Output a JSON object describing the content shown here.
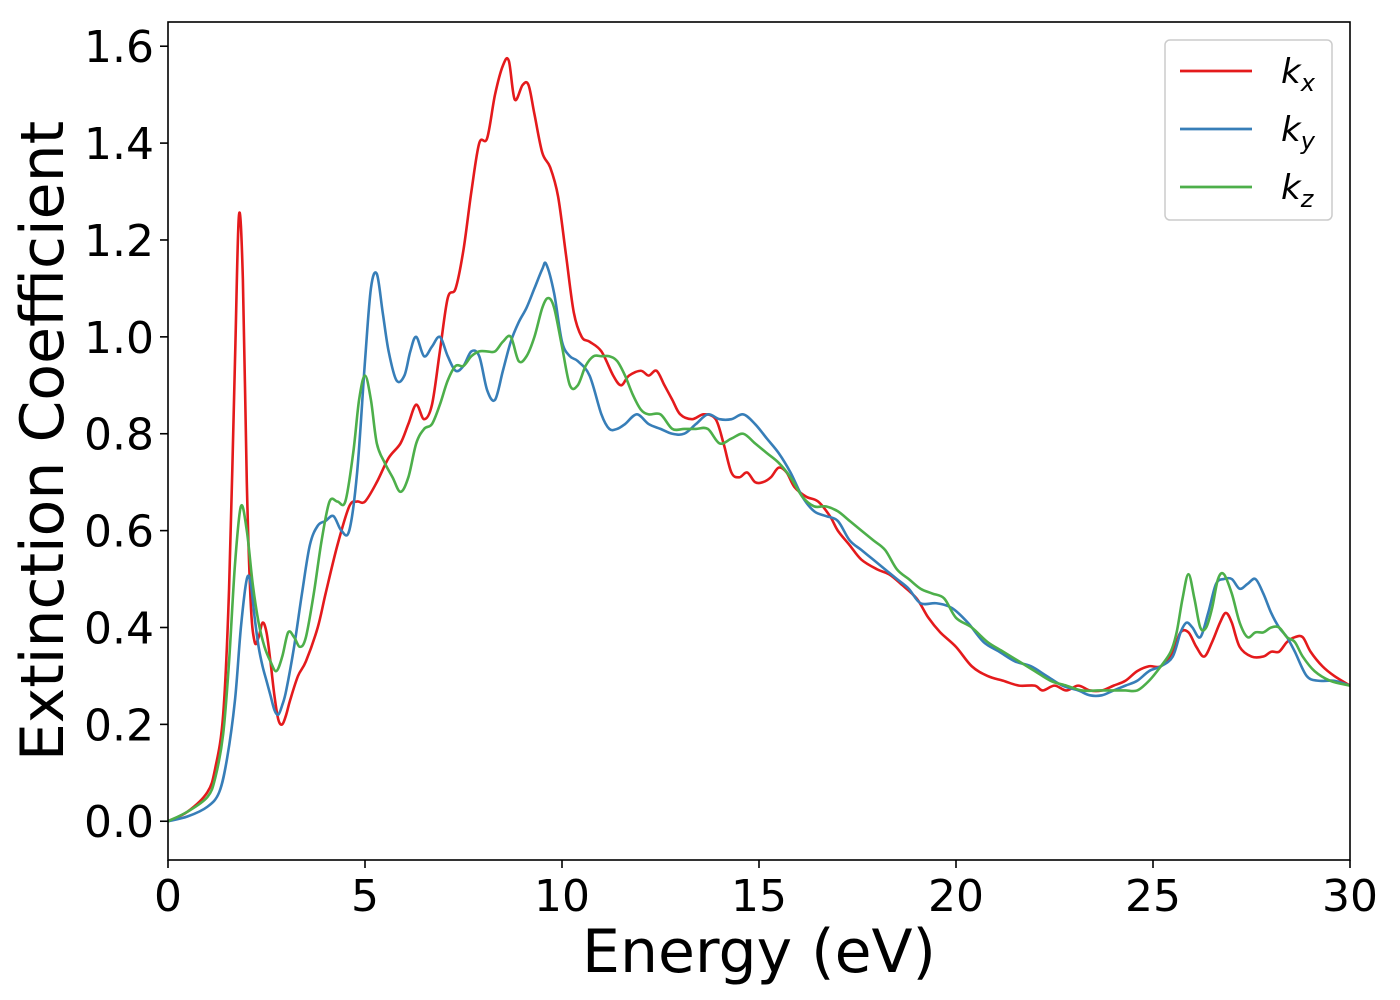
{
  "chart_data": {
    "type": "line",
    "title": "",
    "xlabel": "Energy (eV)",
    "ylabel": "Extinction Coefficient",
    "xlim": [
      0,
      30
    ],
    "ylim": [
      -0.08,
      1.65
    ],
    "xticks": [
      0,
      5,
      10,
      15,
      20,
      25,
      30
    ],
    "xtick_labels": [
      "0",
      "5",
      "10",
      "15",
      "20",
      "25",
      "30"
    ],
    "yticks": [
      0.0,
      0.2,
      0.4,
      0.6,
      0.8,
      1.0,
      1.2,
      1.4,
      1.6
    ],
    "ytick_labels": [
      "0.0",
      "0.2",
      "0.4",
      "0.6",
      "0.8",
      "1.0",
      "1.2",
      "1.4",
      "1.6"
    ],
    "grid": false,
    "legend_position": "top-right",
    "series": [
      {
        "name": "k_x",
        "legend_base": "k",
        "legend_sub": "x",
        "color": "#e41a1c",
        "x": [
          0,
          0.5,
          1.0,
          1.2,
          1.4,
          1.55,
          1.7,
          1.8,
          1.9,
          2.0,
          2.1,
          2.2,
          2.3,
          2.4,
          2.5,
          2.6,
          2.7,
          2.8,
          2.9,
          3.0,
          3.1,
          3.3,
          3.5,
          3.8,
          4.0,
          4.3,
          4.6,
          4.8,
          5.0,
          5.3,
          5.6,
          5.9,
          6.1,
          6.3,
          6.5,
          6.7,
          6.9,
          7.1,
          7.3,
          7.5,
          7.7,
          7.9,
          8.1,
          8.3,
          8.5,
          8.65,
          8.8,
          9.0,
          9.15,
          9.3,
          9.5,
          9.7,
          9.9,
          10.1,
          10.3,
          10.5,
          10.7,
          11.0,
          11.3,
          11.5,
          11.7,
          12.0,
          12.2,
          12.4,
          12.6,
          12.8,
          13.0,
          13.3,
          13.6,
          13.9,
          14.1,
          14.3,
          14.5,
          14.7,
          14.9,
          15.1,
          15.3,
          15.5,
          15.7,
          15.9,
          16.2,
          16.5,
          16.8,
          17.0,
          17.3,
          17.6,
          18.0,
          18.3,
          18.6,
          19.0,
          19.3,
          19.6,
          20.0,
          20.4,
          20.8,
          21.2,
          21.6,
          22.0,
          22.2,
          22.5,
          22.8,
          23.1,
          23.4,
          23.7,
          24.0,
          24.3,
          24.6,
          24.9,
          25.2,
          25.5,
          25.7,
          25.9,
          26.1,
          26.3,
          26.5,
          26.7,
          26.85,
          27.0,
          27.2,
          27.5,
          27.8,
          28.0,
          28.2,
          28.4,
          28.6,
          28.8,
          29.0,
          29.3,
          29.6,
          30.0
        ],
        "y": [
          0.0,
          0.02,
          0.06,
          0.11,
          0.22,
          0.48,
          0.95,
          1.25,
          1.12,
          0.7,
          0.45,
          0.37,
          0.38,
          0.41,
          0.39,
          0.33,
          0.26,
          0.21,
          0.2,
          0.22,
          0.25,
          0.3,
          0.33,
          0.4,
          0.47,
          0.57,
          0.65,
          0.66,
          0.66,
          0.7,
          0.75,
          0.78,
          0.82,
          0.86,
          0.83,
          0.86,
          0.97,
          1.08,
          1.1,
          1.18,
          1.3,
          1.4,
          1.41,
          1.5,
          1.56,
          1.57,
          1.49,
          1.52,
          1.52,
          1.46,
          1.38,
          1.35,
          1.29,
          1.17,
          1.05,
          1.0,
          0.99,
          0.97,
          0.92,
          0.9,
          0.92,
          0.93,
          0.92,
          0.93,
          0.9,
          0.87,
          0.84,
          0.83,
          0.84,
          0.83,
          0.78,
          0.72,
          0.71,
          0.72,
          0.7,
          0.7,
          0.71,
          0.73,
          0.72,
          0.69,
          0.67,
          0.66,
          0.63,
          0.6,
          0.57,
          0.54,
          0.52,
          0.51,
          0.49,
          0.46,
          0.42,
          0.39,
          0.36,
          0.32,
          0.3,
          0.29,
          0.28,
          0.28,
          0.27,
          0.28,
          0.27,
          0.28,
          0.27,
          0.27,
          0.28,
          0.29,
          0.31,
          0.32,
          0.32,
          0.35,
          0.39,
          0.39,
          0.36,
          0.34,
          0.37,
          0.41,
          0.43,
          0.41,
          0.36,
          0.34,
          0.34,
          0.35,
          0.35,
          0.37,
          0.38,
          0.38,
          0.35,
          0.32,
          0.3,
          0.28
        ]
      },
      {
        "name": "k_y",
        "legend_base": "k",
        "legend_sub": "y",
        "color": "#377eb8",
        "x": [
          0,
          0.5,
          1.0,
          1.3,
          1.5,
          1.7,
          1.85,
          2.0,
          2.1,
          2.2,
          2.3,
          2.4,
          2.5,
          2.6,
          2.7,
          2.8,
          2.9,
          3.0,
          3.2,
          3.4,
          3.6,
          3.8,
          4.0,
          4.2,
          4.4,
          4.6,
          4.8,
          5.0,
          5.15,
          5.3,
          5.45,
          5.6,
          5.8,
          6.0,
          6.15,
          6.3,
          6.5,
          6.7,
          6.9,
          7.1,
          7.3,
          7.5,
          7.7,
          7.9,
          8.1,
          8.3,
          8.5,
          8.7,
          8.9,
          9.1,
          9.3,
          9.5,
          9.6,
          9.8,
          10.0,
          10.2,
          10.4,
          10.7,
          11.0,
          11.2,
          11.4,
          11.6,
          11.9,
          12.2,
          12.5,
          12.8,
          13.1,
          13.4,
          13.7,
          14.0,
          14.3,
          14.6,
          14.9,
          15.2,
          15.5,
          15.8,
          16.1,
          16.4,
          16.7,
          17.0,
          17.3,
          17.6,
          17.9,
          18.2,
          18.5,
          18.8,
          19.1,
          19.5,
          19.9,
          20.3,
          20.7,
          21.1,
          21.5,
          21.9,
          22.3,
          22.7,
          23.1,
          23.4,
          23.7,
          24.0,
          24.3,
          24.6,
          24.9,
          25.2,
          25.5,
          25.7,
          25.85,
          26.0,
          26.2,
          26.4,
          26.6,
          26.8,
          27.0,
          27.2,
          27.4,
          27.6,
          27.8,
          28.0,
          28.2,
          28.4,
          28.6,
          28.9,
          29.2,
          29.6,
          30.0
        ],
        "y": [
          0.0,
          0.01,
          0.03,
          0.06,
          0.13,
          0.25,
          0.4,
          0.5,
          0.49,
          0.42,
          0.36,
          0.32,
          0.29,
          0.26,
          0.23,
          0.22,
          0.24,
          0.27,
          0.36,
          0.47,
          0.57,
          0.61,
          0.62,
          0.63,
          0.6,
          0.6,
          0.72,
          0.95,
          1.1,
          1.13,
          1.05,
          0.97,
          0.91,
          0.92,
          0.97,
          1.0,
          0.96,
          0.98,
          1.0,
          0.96,
          0.93,
          0.94,
          0.97,
          0.96,
          0.89,
          0.87,
          0.93,
          0.99,
          1.03,
          1.06,
          1.1,
          1.14,
          1.15,
          1.09,
          0.99,
          0.96,
          0.95,
          0.92,
          0.84,
          0.81,
          0.81,
          0.82,
          0.84,
          0.82,
          0.81,
          0.8,
          0.8,
          0.82,
          0.84,
          0.83,
          0.83,
          0.84,
          0.82,
          0.79,
          0.76,
          0.72,
          0.67,
          0.64,
          0.63,
          0.62,
          0.58,
          0.56,
          0.54,
          0.52,
          0.5,
          0.48,
          0.45,
          0.45,
          0.44,
          0.41,
          0.37,
          0.35,
          0.33,
          0.32,
          0.3,
          0.28,
          0.27,
          0.26,
          0.26,
          0.27,
          0.28,
          0.29,
          0.31,
          0.32,
          0.34,
          0.39,
          0.41,
          0.4,
          0.38,
          0.43,
          0.49,
          0.5,
          0.5,
          0.48,
          0.49,
          0.5,
          0.47,
          0.43,
          0.4,
          0.38,
          0.35,
          0.3,
          0.29,
          0.29,
          0.28
        ]
      },
      {
        "name": "k_z",
        "legend_base": "k",
        "legend_sub": "z",
        "color": "#4daf4a",
        "x": [
          0,
          0.5,
          1.0,
          1.2,
          1.4,
          1.55,
          1.7,
          1.85,
          2.0,
          2.15,
          2.3,
          2.45,
          2.6,
          2.75,
          2.9,
          3.05,
          3.2,
          3.35,
          3.5,
          3.7,
          3.9,
          4.1,
          4.3,
          4.5,
          4.7,
          4.85,
          5.0,
          5.15,
          5.3,
          5.5,
          5.7,
          5.9,
          6.1,
          6.3,
          6.5,
          6.7,
          6.9,
          7.1,
          7.3,
          7.5,
          7.7,
          7.9,
          8.1,
          8.3,
          8.5,
          8.7,
          8.9,
          9.1,
          9.3,
          9.5,
          9.65,
          9.8,
          10.0,
          10.2,
          10.4,
          10.6,
          10.8,
          11.0,
          11.2,
          11.4,
          11.6,
          11.8,
          12.0,
          12.2,
          12.5,
          12.8,
          13.1,
          13.4,
          13.7,
          14.0,
          14.3,
          14.6,
          14.9,
          15.2,
          15.5,
          15.8,
          16.1,
          16.4,
          16.7,
          17.0,
          17.3,
          17.6,
          17.9,
          18.2,
          18.5,
          18.8,
          19.1,
          19.4,
          19.7,
          20.0,
          20.4,
          20.8,
          21.2,
          21.6,
          22.0,
          22.4,
          22.8,
          23.2,
          23.6,
          24.0,
          24.3,
          24.6,
          24.9,
          25.2,
          25.45,
          25.6,
          25.75,
          25.9,
          26.05,
          26.2,
          26.35,
          26.5,
          26.65,
          26.8,
          27.0,
          27.2,
          27.4,
          27.6,
          27.8,
          28.0,
          28.2,
          28.4,
          28.6,
          28.8,
          29.1,
          29.5,
          30.0
        ],
        "y": [
          0.0,
          0.02,
          0.05,
          0.09,
          0.18,
          0.33,
          0.53,
          0.65,
          0.6,
          0.49,
          0.41,
          0.36,
          0.33,
          0.31,
          0.34,
          0.39,
          0.38,
          0.36,
          0.38,
          0.47,
          0.58,
          0.66,
          0.66,
          0.66,
          0.76,
          0.87,
          0.92,
          0.87,
          0.78,
          0.74,
          0.71,
          0.68,
          0.71,
          0.78,
          0.81,
          0.82,
          0.86,
          0.91,
          0.94,
          0.94,
          0.96,
          0.97,
          0.97,
          0.97,
          0.99,
          1.0,
          0.95,
          0.96,
          1.0,
          1.06,
          1.08,
          1.06,
          0.98,
          0.9,
          0.9,
          0.94,
          0.96,
          0.96,
          0.96,
          0.95,
          0.92,
          0.88,
          0.85,
          0.84,
          0.84,
          0.81,
          0.81,
          0.81,
          0.81,
          0.78,
          0.79,
          0.8,
          0.78,
          0.76,
          0.74,
          0.71,
          0.67,
          0.65,
          0.65,
          0.64,
          0.62,
          0.6,
          0.58,
          0.56,
          0.52,
          0.5,
          0.48,
          0.47,
          0.46,
          0.42,
          0.4,
          0.37,
          0.35,
          0.33,
          0.31,
          0.29,
          0.28,
          0.27,
          0.27,
          0.27,
          0.27,
          0.27,
          0.29,
          0.32,
          0.35,
          0.39,
          0.46,
          0.51,
          0.46,
          0.4,
          0.4,
          0.44,
          0.5,
          0.51,
          0.47,
          0.41,
          0.38,
          0.39,
          0.39,
          0.4,
          0.4,
          0.38,
          0.37,
          0.34,
          0.31,
          0.29,
          0.28
        ]
      }
    ]
  }
}
